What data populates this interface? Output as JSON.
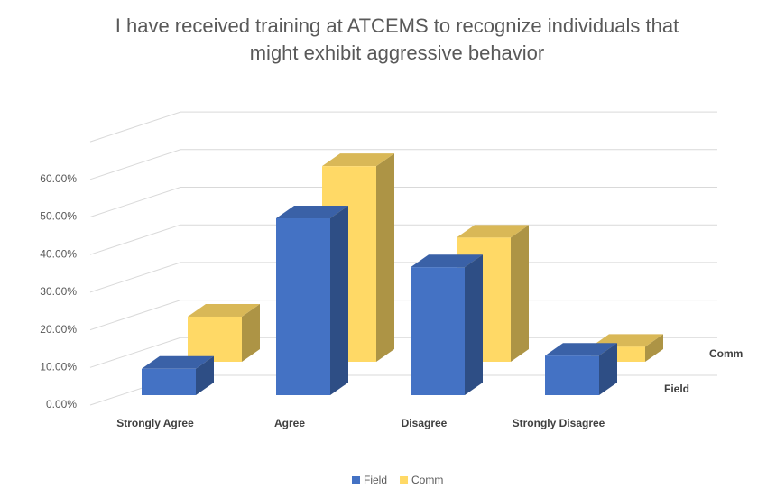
{
  "chart_data": {
    "type": "bar3d",
    "title": "I have received training at ATCEMS to recognize individuals that might exhibit aggressive behavior",
    "categories": [
      "Strongly Agree",
      "Agree",
      "Disagree",
      "Strongly Disagree"
    ],
    "series": [
      {
        "name": "Field",
        "color": "#4472c4",
        "values": [
          7,
          47,
          34,
          10.5
        ]
      },
      {
        "name": "Comm",
        "color": "#ffd966",
        "values": [
          12,
          52,
          33,
          4
        ]
      }
    ],
    "ylim": [
      0,
      70
    ],
    "yticks": [
      {
        "value": 0,
        "label": "0.00%"
      },
      {
        "value": 10,
        "label": "10.00%"
      },
      {
        "value": 20,
        "label": "20.00%"
      },
      {
        "value": 30,
        "label": "30.00%"
      },
      {
        "value": 40,
        "label": "40.00%"
      },
      {
        "value": 50,
        "label": "50.00%"
      },
      {
        "value": 60,
        "label": "60.00%"
      }
    ],
    "grid": true,
    "legend": "bottom"
  }
}
